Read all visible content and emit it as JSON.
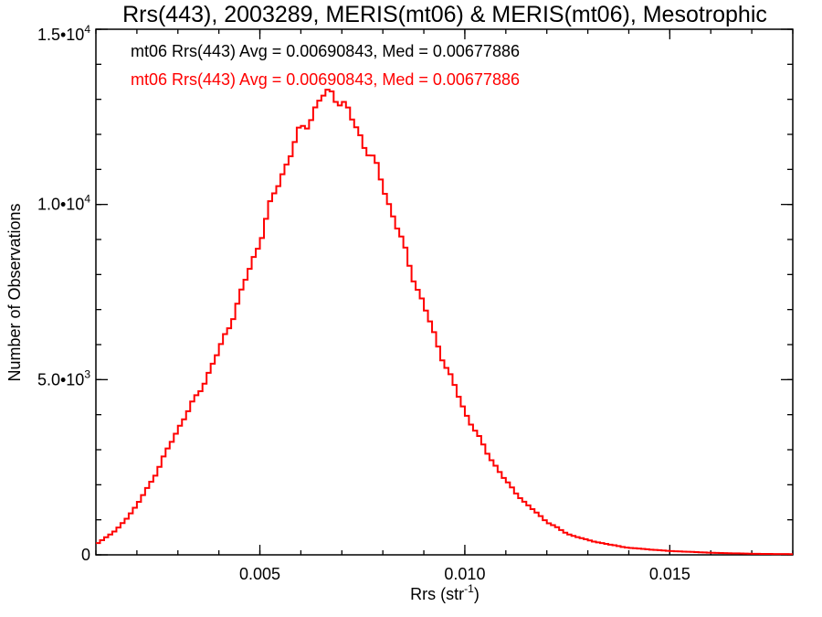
{
  "chart_data": {
    "type": "line",
    "title": "Rrs(443), 2003289, MERIS(mt06) & MERIS(mt06), Mesotrophic",
    "xlabel": "Rrs (str",
    "xlabel_sup": "-1",
    "xlabel_end": ")",
    "ylabel": "Number of Observations",
    "xlim": [
      0.001,
      0.018
    ],
    "ylim": [
      0,
      15000
    ],
    "x_major_ticks": [
      0.005,
      0.01,
      0.015
    ],
    "x_major_labels": [
      "0.005",
      "0.010",
      "0.015"
    ],
    "x_minor_step": 0.001,
    "y_major_ticks": [
      0,
      5000,
      10000,
      15000
    ],
    "y_major_labels": [
      {
        "mant": "0",
        "exp": ""
      },
      {
        "mant": "5.0•10",
        "exp": "3"
      },
      {
        "mant": "1.0•10",
        "exp": "4"
      },
      {
        "mant": "1.5•10",
        "exp": "4"
      }
    ],
    "y_minor_step": 1000,
    "grid": false,
    "legend": [
      {
        "text": "mt06 Rrs(443) Avg = 0.00690843, Med = 0.00677886",
        "color": "#000000"
      },
      {
        "text": "mt06 Rrs(443) Avg = 0.00690843, Med = 0.00677886",
        "color": "#ff0000"
      }
    ],
    "series": [
      {
        "color": "#ff0000",
        "step": true,
        "x": [
          0.001,
          0.0015,
          0.002,
          0.0025,
          0.003,
          0.0035,
          0.004,
          0.0045,
          0.005,
          0.0055,
          0.006,
          0.0065,
          0.0068,
          0.007,
          0.0075,
          0.008,
          0.0085,
          0.009,
          0.0095,
          0.01,
          0.0105,
          0.011,
          0.0115,
          0.012,
          0.0125,
          0.013,
          0.0135,
          0.014,
          0.015,
          0.016,
          0.017,
          0.018
        ],
        "y": [
          300,
          700,
          1400,
          2400,
          3600,
          4600,
          5800,
          7300,
          9000,
          10800,
          12100,
          13000,
          13250,
          12900,
          11900,
          10600,
          8800,
          7100,
          5500,
          4100,
          3000,
          2100,
          1450,
          950,
          600,
          420,
          300,
          200,
          110,
          60,
          30,
          20
        ]
      }
    ]
  }
}
